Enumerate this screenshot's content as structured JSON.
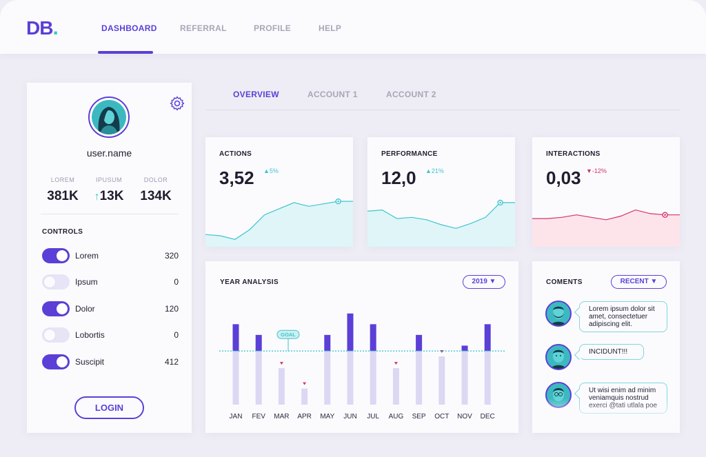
{
  "app": {
    "logo_main": "DB",
    "logo_dot": "."
  },
  "nav": {
    "items": [
      {
        "label": "DASHBOARD",
        "active": true
      },
      {
        "label": "REFERRAL",
        "active": false
      },
      {
        "label": "PROFILE",
        "active": false
      },
      {
        "label": "HELP",
        "active": false
      }
    ]
  },
  "profile": {
    "username": "user.name",
    "stats": [
      {
        "label": "LOREM",
        "value": "381K",
        "arrow": ""
      },
      {
        "label": "IPUSUM",
        "value": "13K",
        "arrow": "↑"
      },
      {
        "label": "DOLOR",
        "value": "134K",
        "arrow": ""
      }
    ],
    "controls_title": "CONTROLS",
    "controls": [
      {
        "label": "Lorem",
        "value": "320",
        "on": true
      },
      {
        "label": "Ipsum",
        "value": "0",
        "on": false
      },
      {
        "label": "Dolor",
        "value": "120",
        "on": true
      },
      {
        "label": "Lobortis",
        "value": "0",
        "on": false
      },
      {
        "label": "Suscipit",
        "value": "412",
        "on": true
      }
    ],
    "login_label": "LOGIN"
  },
  "subtabs": [
    {
      "label": "OVERVIEW",
      "active": true
    },
    {
      "label": "ACCOUNT 1",
      "active": false
    },
    {
      "label": "ACCOUNT 2",
      "active": false
    }
  ],
  "metrics": [
    {
      "title": "ACTIONS",
      "value": "3,52",
      "delta": "▲5%",
      "trend": "up",
      "color": "#3ec5cc",
      "fill": "#dff5f8"
    },
    {
      "title": "PERFORMANCE",
      "value": "12,0",
      "delta": "▲21%",
      "trend": "up",
      "color": "#3ec5cc",
      "fill": "#dff5f8"
    },
    {
      "title": "INTERACTIONS",
      "value": "0,03",
      "delta": "▼-12%",
      "trend": "down",
      "color": "#d6326a",
      "fill": "#fde3ea"
    }
  ],
  "year_analysis": {
    "title": "YEAR ANALYSIS",
    "year_select": "2019 ▼",
    "goal_label": "GOAL"
  },
  "comments": {
    "title": "COMENTS",
    "filter": "RECENT ▼",
    "items": [
      {
        "text": "Lorem ipsum dolor sit amet, consectetuer adipiscing elit."
      },
      {
        "text": "INCIDUNT!!!"
      },
      {
        "text": "Ut wisi enim ad minim veniamquis nostrud exerci @tati utlala poe"
      }
    ]
  },
  "colors": {
    "accent": "#5b3fd6",
    "teal": "#3ec5cc",
    "pink": "#d6326a",
    "bar_light": "#dcd7f2"
  },
  "chart_data": [
    {
      "type": "bar",
      "title": "YEAR ANALYSIS",
      "categories": [
        "JAN",
        "FEV",
        "MAR",
        "APR",
        "MAY",
        "JUN",
        "JUL",
        "AUG",
        "SEP",
        "OCT",
        "NOV",
        "DEC"
      ],
      "goal": 100,
      "values": [
        150,
        130,
        68,
        30,
        130,
        170,
        150,
        68,
        130,
        90,
        110,
        150
      ],
      "below_goal_marker": [
        false,
        false,
        true,
        true,
        false,
        false,
        false,
        true,
        false,
        true,
        false,
        false
      ],
      "ylim": [
        0,
        180
      ]
    },
    {
      "type": "area",
      "title": "ACTIONS",
      "x": [
        0,
        1,
        2,
        3,
        4,
        5,
        6,
        7,
        8,
        9,
        10
      ],
      "values": [
        20,
        18,
        12,
        28,
        52,
        62,
        72,
        66,
        70,
        74,
        74
      ],
      "ylim": [
        0,
        100
      ]
    },
    {
      "type": "area",
      "title": "PERFORMANCE",
      "x": [
        0,
        1,
        2,
        3,
        4,
        5,
        6,
        7,
        8,
        9,
        10
      ],
      "values": [
        58,
        60,
        46,
        48,
        44,
        36,
        30,
        38,
        48,
        72,
        72
      ],
      "ylim": [
        0,
        100
      ]
    },
    {
      "type": "area",
      "title": "INTERACTIONS",
      "x": [
        0,
        1,
        2,
        3,
        4,
        5,
        6,
        7,
        8,
        9,
        10
      ],
      "values": [
        46,
        46,
        48,
        52,
        48,
        44,
        50,
        60,
        54,
        52,
        52
      ],
      "ylim": [
        0,
        100
      ]
    }
  ]
}
